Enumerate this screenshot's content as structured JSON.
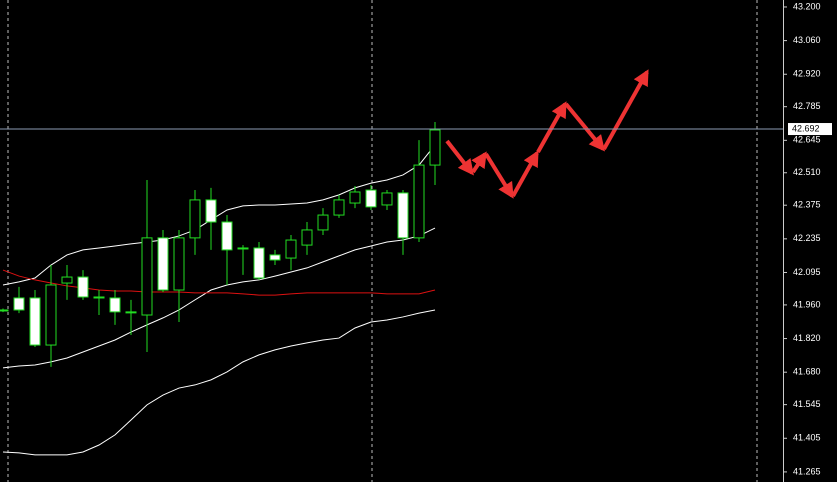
{
  "chart_data": {
    "type": "candlestick",
    "ylim": [
      41.223,
      43.229
    ],
    "yticks": [
      {
        "value": 43.2,
        "label": "43.200"
      },
      {
        "value": 43.06,
        "label": "43.060"
      },
      {
        "value": 42.92,
        "label": "42.920"
      },
      42.785,
      42.645,
      {
        "value": 42.51,
        "label": "42.510"
      },
      42.375,
      42.235,
      42.095,
      {
        "value": 41.96,
        "label": "41.960"
      },
      {
        "value": 41.82,
        "label": "41.820"
      },
      {
        "value": 41.68,
        "label": "41.680"
      },
      41.545,
      41.405,
      41.265
    ],
    "current_price": 42.692,
    "candle_color": "#22dd22",
    "candles": [
      {
        "open": 41.939,
        "high": 41.945,
        "low": 41.93,
        "close": 41.939
      },
      {
        "open": 41.989,
        "high": 42.035,
        "low": 41.926,
        "close": 41.939
      },
      {
        "open": 41.989,
        "high": 42.022,
        "low": 41.785,
        "close": 41.793
      },
      {
        "open": 41.793,
        "high": 42.126,
        "low": 41.702,
        "close": 42.043
      },
      {
        "open": 42.051,
        "high": 42.126,
        "low": 41.981,
        "close": 42.076
      },
      {
        "open": 42.076,
        "high": 42.105,
        "low": 41.981,
        "close": 41.993
      },
      {
        "open": 41.993,
        "high": 42.022,
        "low": 41.918,
        "close": 41.993
      },
      {
        "open": 41.989,
        "high": 42.022,
        "low": 41.877,
        "close": 41.931
      },
      {
        "open": 41.931,
        "high": 41.981,
        "low": 41.835,
        "close": 41.931
      },
      {
        "open": 41.918,
        "high": 42.48,
        "low": 41.764,
        "close": 42.239
      },
      {
        "open": 42.239,
        "high": 42.272,
        "low": 42.014,
        "close": 42.022
      },
      {
        "open": 42.022,
        "high": 42.272,
        "low": 41.889,
        "close": 42.239
      },
      {
        "open": 42.239,
        "high": 42.438,
        "low": 42.168,
        "close": 42.397
      },
      {
        "open": 42.397,
        "high": 42.447,
        "low": 42.189,
        "close": 42.305
      },
      {
        "open": 42.305,
        "high": 42.334,
        "low": 42.043,
        "close": 42.189
      },
      {
        "open": 42.197,
        "high": 42.209,
        "low": 42.085,
        "close": 42.197
      },
      {
        "open": 42.197,
        "high": 42.222,
        "low": 42.064,
        "close": 42.072
      },
      {
        "open": 42.168,
        "high": 42.189,
        "low": 42.126,
        "close": 42.147
      },
      {
        "open": 42.155,
        "high": 42.251,
        "low": 42.105,
        "close": 42.23
      },
      {
        "open": 42.209,
        "high": 42.305,
        "low": 42.168,
        "close": 42.272
      },
      {
        "open": 42.272,
        "high": 42.363,
        "low": 42.251,
        "close": 42.334
      },
      {
        "open": 42.334,
        "high": 42.418,
        "low": 42.322,
        "close": 42.397
      },
      {
        "open": 42.384,
        "high": 42.455,
        "low": 42.363,
        "close": 42.43
      },
      {
        "open": 42.438,
        "high": 42.459,
        "low": 42.355,
        "close": 42.368
      },
      {
        "open": 42.376,
        "high": 42.438,
        "low": 42.355,
        "close": 42.426
      },
      {
        "open": 42.426,
        "high": 42.438,
        "low": 42.168,
        "close": 42.239
      },
      {
        "open": 42.239,
        "high": 42.646,
        "low": 42.222,
        "close": 42.542
      },
      {
        "open": 42.542,
        "high": 42.721,
        "low": 42.459,
        "close": 42.688
      }
    ],
    "series": [
      {
        "color": "#ffffff",
        "values": [
          42.043,
          42.056,
          42.072,
          42.126,
          42.168,
          42.189,
          42.197,
          42.205,
          42.214,
          42.222,
          42.23,
          42.247,
          42.272,
          42.314,
          42.355,
          42.372,
          42.376,
          42.376,
          42.38,
          42.384,
          42.397,
          42.418,
          42.447,
          42.467,
          42.48,
          42.501,
          42.542,
          42.626
        ]
      },
      {
        "color": "#ffffff",
        "values": [
          41.698,
          41.706,
          41.71,
          41.723,
          41.739,
          41.764,
          41.789,
          41.814,
          41.847,
          41.877,
          41.906,
          41.939,
          41.981,
          42.022,
          42.043,
          42.056,
          42.064,
          42.08,
          42.097,
          42.114,
          42.139,
          42.164,
          42.189,
          42.205,
          42.222,
          42.23,
          42.247,
          42.28
        ]
      },
      {
        "color": "#dd1111",
        "values": [
          42.105,
          42.08,
          42.064,
          42.051,
          42.039,
          42.031,
          42.022,
          42.018,
          42.018,
          42.014,
          42.014,
          42.014,
          42.01,
          42.01,
          42.01,
          42.006,
          42.001,
          42.001,
          42.006,
          42.01,
          42.01,
          42.01,
          42.01,
          42.01,
          42.006,
          42.006,
          42.006,
          42.022
        ]
      },
      {
        "color": "#ffffff",
        "values": [
          41.348,
          41.344,
          41.336,
          41.336,
          41.336,
          41.348,
          41.377,
          41.419,
          41.481,
          41.544,
          41.585,
          41.614,
          41.627,
          41.648,
          41.681,
          41.723,
          41.752,
          41.773,
          41.789,
          41.802,
          41.814,
          41.822,
          41.864,
          41.889,
          41.897,
          41.91,
          41.926,
          41.939
        ]
      }
    ]
  }
}
